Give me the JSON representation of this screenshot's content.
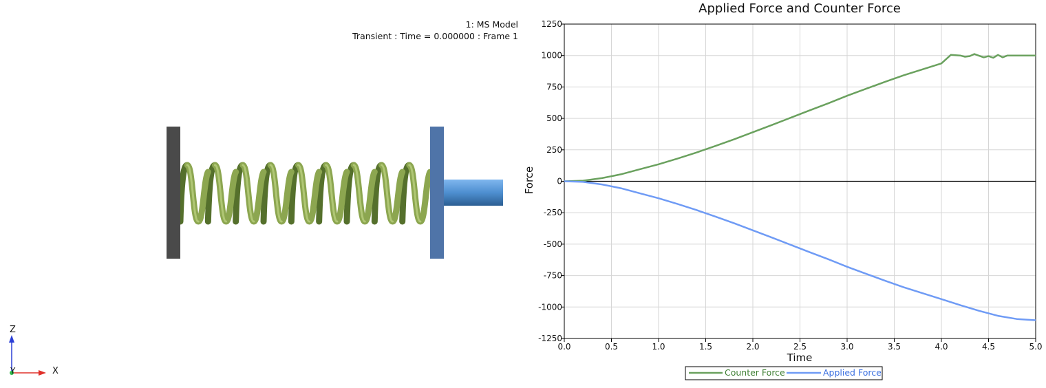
{
  "viewport": {
    "model_label": "1: MS Model",
    "frame_label": "Transient : Time = 0.000000 : Frame 1",
    "axes": {
      "z": "Z",
      "y": "Y",
      "x": "X"
    }
  },
  "colors": {
    "counter_force": "#6aa15e",
    "applied_force": "#6f9bf5",
    "wall": "#4a4a4a",
    "plate": "#4f74a8",
    "spring": "#8ca650",
    "rod": "#4e8fd0"
  },
  "chart_data": {
    "type": "line",
    "title": "Applied Force and Counter Force",
    "xlabel": "Time",
    "ylabel": "Force",
    "xlim": [
      0,
      5
    ],
    "ylim": [
      -1250,
      1250
    ],
    "xticks": [
      "0.0",
      "0.5",
      "1.0",
      "1.5",
      "2.0",
      "2.5",
      "3.0",
      "3.5",
      "4.0",
      "4.5",
      "5.0"
    ],
    "yticks": [
      "1250",
      "1000",
      "750",
      "500",
      "250",
      "0",
      "-250",
      "-500",
      "-750",
      "-1000",
      "-1250"
    ],
    "grid": true,
    "legend_position": "bottom",
    "series": [
      {
        "name": "Counter Force",
        "color": "#6aa15e",
        "x": [
          0,
          0.2,
          0.4,
          0.6,
          0.8,
          1.0,
          1.2,
          1.4,
          1.6,
          1.8,
          2.0,
          2.2,
          2.4,
          2.6,
          2.8,
          3.0,
          3.2,
          3.4,
          3.6,
          3.8,
          4.0,
          4.1,
          4.2,
          4.25,
          4.3,
          4.35,
          4.4,
          4.45,
          4.5,
          4.55,
          4.6,
          4.65,
          4.7,
          4.8,
          5.0
        ],
        "y": [
          0,
          5,
          25,
          55,
          95,
          135,
          180,
          228,
          280,
          333,
          390,
          447,
          505,
          563,
          620,
          680,
          735,
          790,
          843,
          890,
          937,
          1005,
          1000,
          990,
          995,
          1012,
          998,
          985,
          995,
          982,
          1005,
          985,
          1000,
          1000,
          1000
        ]
      },
      {
        "name": "Applied Force",
        "color": "#6f9bf5",
        "x": [
          0,
          0.2,
          0.4,
          0.6,
          0.8,
          1.0,
          1.2,
          1.4,
          1.6,
          1.8,
          2.0,
          2.2,
          2.4,
          2.6,
          2.8,
          3.0,
          3.2,
          3.4,
          3.6,
          3.8,
          4.0,
          4.2,
          4.4,
          4.6,
          4.8,
          5.0
        ],
        "y": [
          0,
          -5,
          -25,
          -55,
          -95,
          -135,
          -180,
          -228,
          -280,
          -333,
          -390,
          -447,
          -505,
          -563,
          -620,
          -680,
          -735,
          -790,
          -843,
          -890,
          -937,
          -985,
          -1030,
          -1070,
          -1095,
          -1105
        ]
      }
    ]
  }
}
